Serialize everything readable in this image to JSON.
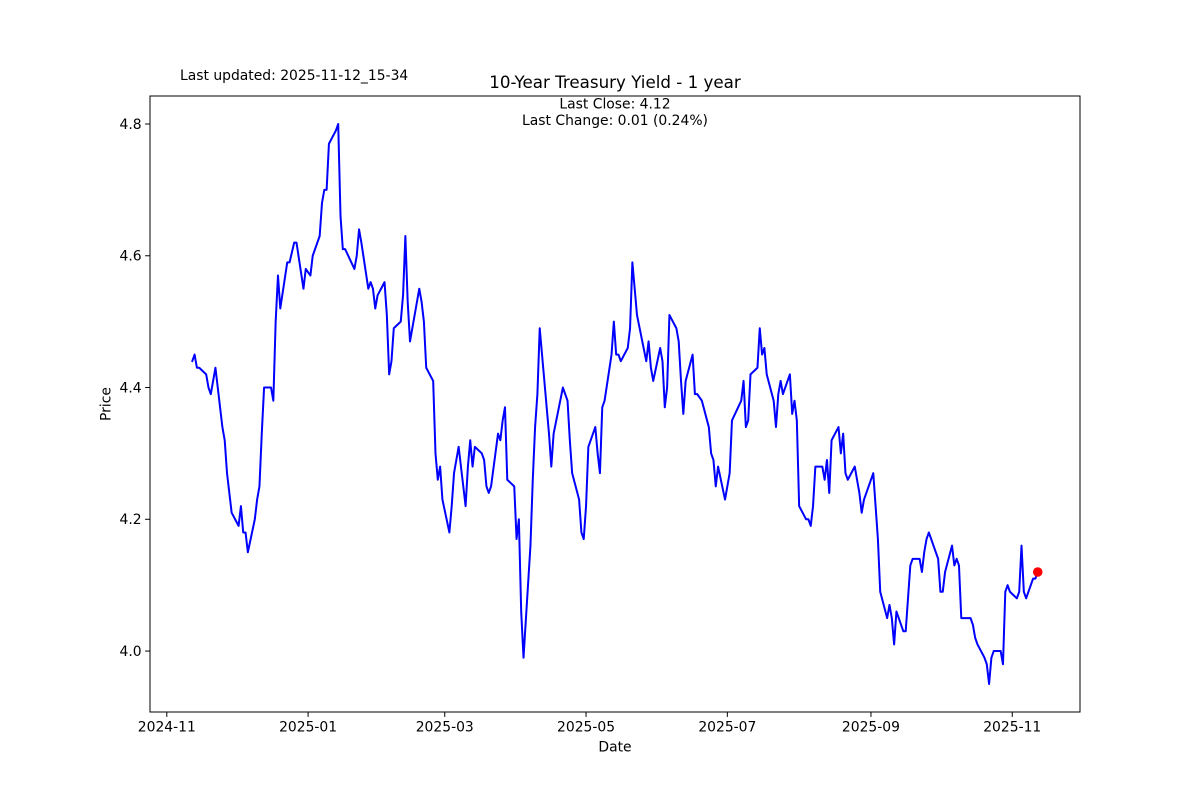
{
  "figure": {
    "last_updated": "Last updated: 2025-11-12_15-34",
    "title": "10-Year Treasury Yield - 1 year",
    "subtitle_line1": "Last Close: 4.12",
    "subtitle_line2": "Last Change: 0.01 (0.24%)",
    "xlabel": "Date",
    "ylabel": "Price"
  },
  "chart_data": {
    "type": "line",
    "title": "10-Year Treasury Yield - 1 year",
    "xlabel": "Date",
    "ylabel": "Price",
    "annotations": [
      "Last Close: 4.12",
      "Last Change: 0.01 (0.24%)",
      "Last updated: 2025-11-12_15-34"
    ],
    "last_close": 4.12,
    "last_change": "0.01 (0.24%)",
    "line_color": "#0000ff",
    "marker_color": "#ff0000",
    "grid": false,
    "legend": "none",
    "x_start_date": "2024-11-12",
    "x_end_date": "2025-11-12",
    "xlim_days": [
      -18.25,
      383.25
    ],
    "ylim": [
      3.9075,
      4.8425
    ],
    "y_ticks": [
      {
        "value": 4.0,
        "label": "4.0"
      },
      {
        "value": 4.2,
        "label": "4.2"
      },
      {
        "value": 4.4,
        "label": "4.4"
      },
      {
        "value": 4.6,
        "label": "4.6"
      },
      {
        "value": 4.8,
        "label": "4.8"
      }
    ],
    "x_ticks": [
      {
        "date": "2024-11-01",
        "label": "2024-11"
      },
      {
        "date": "2025-01-01",
        "label": "2025-01"
      },
      {
        "date": "2025-03-01",
        "label": "2025-03"
      },
      {
        "date": "2025-05-01",
        "label": "2025-05"
      },
      {
        "date": "2025-07-01",
        "label": "2025-07"
      },
      {
        "date": "2025-09-01",
        "label": "2025-09"
      },
      {
        "date": "2025-11-01",
        "label": "2025-11"
      }
    ],
    "points": [
      [
        "2024-11-12",
        4.44
      ],
      [
        "2024-11-13",
        4.45
      ],
      [
        "2024-11-14",
        4.43
      ],
      [
        "2024-11-15",
        4.43
      ],
      [
        "2024-11-18",
        4.42
      ],
      [
        "2024-11-19",
        4.4
      ],
      [
        "2024-11-20",
        4.39
      ],
      [
        "2024-11-21",
        4.41
      ],
      [
        "2024-11-22",
        4.43
      ],
      [
        "2024-11-25",
        4.34
      ],
      [
        "2024-11-26",
        4.32
      ],
      [
        "2024-11-27",
        4.27
      ],
      [
        "2024-11-29",
        4.21
      ],
      [
        "2024-12-02",
        4.19
      ],
      [
        "2024-12-03",
        4.22
      ],
      [
        "2024-12-04",
        4.18
      ],
      [
        "2024-12-05",
        4.18
      ],
      [
        "2024-12-06",
        4.15
      ],
      [
        "2024-12-09",
        4.2
      ],
      [
        "2024-12-10",
        4.23
      ],
      [
        "2024-12-11",
        4.25
      ],
      [
        "2024-12-12",
        4.33
      ],
      [
        "2024-12-13",
        4.4
      ],
      [
        "2024-12-16",
        4.4
      ],
      [
        "2024-12-17",
        4.38
      ],
      [
        "2024-12-18",
        4.5
      ],
      [
        "2024-12-19",
        4.57
      ],
      [
        "2024-12-20",
        4.52
      ],
      [
        "2024-12-23",
        4.59
      ],
      [
        "2024-12-24",
        4.59
      ],
      [
        "2024-12-26",
        4.62
      ],
      [
        "2024-12-27",
        4.62
      ],
      [
        "2024-12-30",
        4.55
      ],
      [
        "2024-12-31",
        4.58
      ],
      [
        "2025-01-02",
        4.57
      ],
      [
        "2025-01-03",
        4.6
      ],
      [
        "2025-01-06",
        4.63
      ],
      [
        "2025-01-07",
        4.68
      ],
      [
        "2025-01-08",
        4.7
      ],
      [
        "2025-01-09",
        4.7
      ],
      [
        "2025-01-10",
        4.77
      ],
      [
        "2025-01-13",
        4.79
      ],
      [
        "2025-01-14",
        4.8
      ],
      [
        "2025-01-15",
        4.66
      ],
      [
        "2025-01-16",
        4.61
      ],
      [
        "2025-01-17",
        4.61
      ],
      [
        "2025-01-21",
        4.58
      ],
      [
        "2025-01-22",
        4.6
      ],
      [
        "2025-01-23",
        4.64
      ],
      [
        "2025-01-24",
        4.62
      ],
      [
        "2025-01-27",
        4.55
      ],
      [
        "2025-01-28",
        4.56
      ],
      [
        "2025-01-29",
        4.55
      ],
      [
        "2025-01-30",
        4.52
      ],
      [
        "2025-01-31",
        4.54
      ],
      [
        "2025-02-03",
        4.56
      ],
      [
        "2025-02-04",
        4.51
      ],
      [
        "2025-02-05",
        4.42
      ],
      [
        "2025-02-06",
        4.44
      ],
      [
        "2025-02-07",
        4.49
      ],
      [
        "2025-02-10",
        4.5
      ],
      [
        "2025-02-11",
        4.54
      ],
      [
        "2025-02-12",
        4.63
      ],
      [
        "2025-02-13",
        4.53
      ],
      [
        "2025-02-14",
        4.47
      ],
      [
        "2025-02-18",
        4.55
      ],
      [
        "2025-02-19",
        4.53
      ],
      [
        "2025-02-20",
        4.5
      ],
      [
        "2025-02-21",
        4.43
      ],
      [
        "2025-02-24",
        4.41
      ],
      [
        "2025-02-25",
        4.3
      ],
      [
        "2025-02-26",
        4.26
      ],
      [
        "2025-02-27",
        4.28
      ],
      [
        "2025-02-28",
        4.23
      ],
      [
        "2025-03-03",
        4.18
      ],
      [
        "2025-03-04",
        4.22
      ],
      [
        "2025-03-05",
        4.27
      ],
      [
        "2025-03-06",
        4.29
      ],
      [
        "2025-03-07",
        4.31
      ],
      [
        "2025-03-10",
        4.22
      ],
      [
        "2025-03-11",
        4.28
      ],
      [
        "2025-03-12",
        4.32
      ],
      [
        "2025-03-13",
        4.28
      ],
      [
        "2025-03-14",
        4.31
      ],
      [
        "2025-03-17",
        4.3
      ],
      [
        "2025-03-18",
        4.29
      ],
      [
        "2025-03-19",
        4.25
      ],
      [
        "2025-03-20",
        4.24
      ],
      [
        "2025-03-21",
        4.25
      ],
      [
        "2025-03-24",
        4.33
      ],
      [
        "2025-03-25",
        4.32
      ],
      [
        "2025-03-26",
        4.35
      ],
      [
        "2025-03-27",
        4.37
      ],
      [
        "2025-03-28",
        4.26
      ],
      [
        "2025-03-31",
        4.25
      ],
      [
        "2025-04-01",
        4.17
      ],
      [
        "2025-04-02",
        4.2
      ],
      [
        "2025-04-03",
        4.06
      ],
      [
        "2025-04-04",
        3.99
      ],
      [
        "2025-04-07",
        4.16
      ],
      [
        "2025-04-08",
        4.26
      ],
      [
        "2025-04-09",
        4.34
      ],
      [
        "2025-04-10",
        4.39
      ],
      [
        "2025-04-11",
        4.49
      ],
      [
        "2025-04-14",
        4.37
      ],
      [
        "2025-04-15",
        4.33
      ],
      [
        "2025-04-16",
        4.28
      ],
      [
        "2025-04-17",
        4.33
      ],
      [
        "2025-04-21",
        4.4
      ],
      [
        "2025-04-22",
        4.39
      ],
      [
        "2025-04-23",
        4.38
      ],
      [
        "2025-04-24",
        4.32
      ],
      [
        "2025-04-25",
        4.27
      ],
      [
        "2025-04-28",
        4.23
      ],
      [
        "2025-04-29",
        4.18
      ],
      [
        "2025-04-30",
        4.17
      ],
      [
        "2025-05-01",
        4.22
      ],
      [
        "2025-05-02",
        4.31
      ],
      [
        "2025-05-05",
        4.34
      ],
      [
        "2025-05-06",
        4.3
      ],
      [
        "2025-05-07",
        4.27
      ],
      [
        "2025-05-08",
        4.37
      ],
      [
        "2025-05-09",
        4.38
      ],
      [
        "2025-05-12",
        4.45
      ],
      [
        "2025-05-13",
        4.5
      ],
      [
        "2025-05-14",
        4.45
      ],
      [
        "2025-05-15",
        4.45
      ],
      [
        "2025-05-16",
        4.44
      ],
      [
        "2025-05-19",
        4.46
      ],
      [
        "2025-05-20",
        4.49
      ],
      [
        "2025-05-21",
        4.59
      ],
      [
        "2025-05-22",
        4.55
      ],
      [
        "2025-05-23",
        4.51
      ],
      [
        "2025-05-27",
        4.44
      ],
      [
        "2025-05-28",
        4.47
      ],
      [
        "2025-05-29",
        4.43
      ],
      [
        "2025-05-30",
        4.41
      ],
      [
        "2025-06-02",
        4.46
      ],
      [
        "2025-06-03",
        4.44
      ],
      [
        "2025-06-04",
        4.37
      ],
      [
        "2025-06-05",
        4.4
      ],
      [
        "2025-06-06",
        4.51
      ],
      [
        "2025-06-09",
        4.49
      ],
      [
        "2025-06-10",
        4.47
      ],
      [
        "2025-06-11",
        4.41
      ],
      [
        "2025-06-12",
        4.36
      ],
      [
        "2025-06-13",
        4.41
      ],
      [
        "2025-06-16",
        4.45
      ],
      [
        "2025-06-17",
        4.39
      ],
      [
        "2025-06-18",
        4.39
      ],
      [
        "2025-06-20",
        4.38
      ],
      [
        "2025-06-23",
        4.34
      ],
      [
        "2025-06-24",
        4.3
      ],
      [
        "2025-06-25",
        4.29
      ],
      [
        "2025-06-26",
        4.25
      ],
      [
        "2025-06-27",
        4.28
      ],
      [
        "2025-06-30",
        4.23
      ],
      [
        "2025-07-01",
        4.25
      ],
      [
        "2025-07-02",
        4.27
      ],
      [
        "2025-07-03",
        4.35
      ],
      [
        "2025-07-07",
        4.38
      ],
      [
        "2025-07-08",
        4.41
      ],
      [
        "2025-07-09",
        4.34
      ],
      [
        "2025-07-10",
        4.35
      ],
      [
        "2025-07-11",
        4.42
      ],
      [
        "2025-07-14",
        4.43
      ],
      [
        "2025-07-15",
        4.49
      ],
      [
        "2025-07-16",
        4.45
      ],
      [
        "2025-07-17",
        4.46
      ],
      [
        "2025-07-18",
        4.42
      ],
      [
        "2025-07-21",
        4.38
      ],
      [
        "2025-07-22",
        4.34
      ],
      [
        "2025-07-23",
        4.39
      ],
      [
        "2025-07-24",
        4.41
      ],
      [
        "2025-07-25",
        4.39
      ],
      [
        "2025-07-28",
        4.42
      ],
      [
        "2025-07-29",
        4.36
      ],
      [
        "2025-07-30",
        4.38
      ],
      [
        "2025-07-31",
        4.35
      ],
      [
        "2025-08-01",
        4.22
      ],
      [
        "2025-08-04",
        4.2
      ],
      [
        "2025-08-05",
        4.2
      ],
      [
        "2025-08-06",
        4.19
      ],
      [
        "2025-08-07",
        4.22
      ],
      [
        "2025-08-08",
        4.28
      ],
      [
        "2025-08-11",
        4.28
      ],
      [
        "2025-08-12",
        4.26
      ],
      [
        "2025-08-13",
        4.29
      ],
      [
        "2025-08-14",
        4.24
      ],
      [
        "2025-08-15",
        4.32
      ],
      [
        "2025-08-18",
        4.34
      ],
      [
        "2025-08-19",
        4.3
      ],
      [
        "2025-08-20",
        4.33
      ],
      [
        "2025-08-21",
        4.27
      ],
      [
        "2025-08-22",
        4.26
      ],
      [
        "2025-08-25",
        4.28
      ],
      [
        "2025-08-26",
        4.26
      ],
      [
        "2025-08-27",
        4.24
      ],
      [
        "2025-08-28",
        4.21
      ],
      [
        "2025-08-29",
        4.23
      ],
      [
        "2025-09-02",
        4.27
      ],
      [
        "2025-09-03",
        4.22
      ],
      [
        "2025-09-04",
        4.17
      ],
      [
        "2025-09-05",
        4.09
      ],
      [
        "2025-09-08",
        4.05
      ],
      [
        "2025-09-09",
        4.07
      ],
      [
        "2025-09-10",
        4.05
      ],
      [
        "2025-09-11",
        4.01
      ],
      [
        "2025-09-12",
        4.06
      ],
      [
        "2025-09-15",
        4.03
      ],
      [
        "2025-09-16",
        4.03
      ],
      [
        "2025-09-17",
        4.08
      ],
      [
        "2025-09-18",
        4.13
      ],
      [
        "2025-09-19",
        4.14
      ],
      [
        "2025-09-22",
        4.14
      ],
      [
        "2025-09-23",
        4.12
      ],
      [
        "2025-09-24",
        4.15
      ],
      [
        "2025-09-25",
        4.17
      ],
      [
        "2025-09-26",
        4.18
      ],
      [
        "2025-09-29",
        4.15
      ],
      [
        "2025-09-30",
        4.14
      ],
      [
        "2025-10-01",
        4.09
      ],
      [
        "2025-10-02",
        4.09
      ],
      [
        "2025-10-03",
        4.12
      ],
      [
        "2025-10-06",
        4.16
      ],
      [
        "2025-10-07",
        4.13
      ],
      [
        "2025-10-08",
        4.14
      ],
      [
        "2025-10-09",
        4.13
      ],
      [
        "2025-10-10",
        4.05
      ],
      [
        "2025-10-14",
        4.05
      ],
      [
        "2025-10-15",
        4.04
      ],
      [
        "2025-10-16",
        4.02
      ],
      [
        "2025-10-17",
        4.01
      ],
      [
        "2025-10-20",
        3.99
      ],
      [
        "2025-10-21",
        3.98
      ],
      [
        "2025-10-22",
        3.95
      ],
      [
        "2025-10-23",
        3.99
      ],
      [
        "2025-10-24",
        4.0
      ],
      [
        "2025-10-27",
        4.0
      ],
      [
        "2025-10-28",
        3.98
      ],
      [
        "2025-10-29",
        4.09
      ],
      [
        "2025-10-30",
        4.1
      ],
      [
        "2025-10-31",
        4.09
      ],
      [
        "2025-11-03",
        4.08
      ],
      [
        "2025-11-04",
        4.09
      ],
      [
        "2025-11-05",
        4.16
      ],
      [
        "2025-11-06",
        4.09
      ],
      [
        "2025-11-07",
        4.08
      ],
      [
        "2025-11-10",
        4.11
      ],
      [
        "2025-11-11",
        4.11
      ],
      [
        "2025-11-12",
        4.12
      ]
    ]
  }
}
